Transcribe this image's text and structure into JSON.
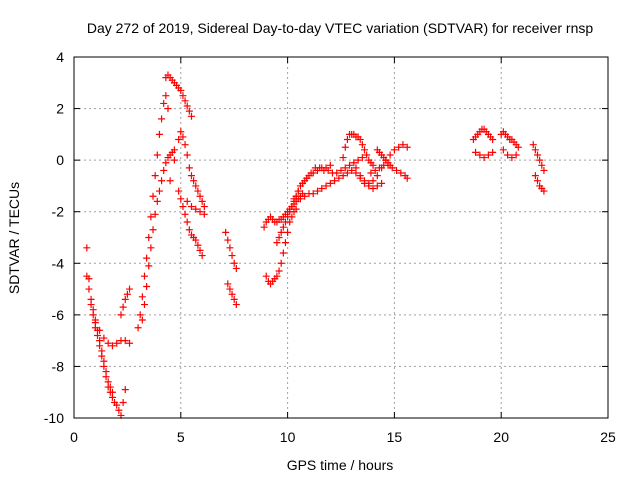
{
  "chart_data": {
    "type": "scatter",
    "title": "Day 272 of 2019, Sidereal Day-to-day VTEC variation (SDTVAR) for receiver rnsp",
    "xlabel": "GPS time / hours",
    "ylabel": "SDTVAR / TECUs",
    "xlim": [
      0,
      25
    ],
    "ylim": [
      -10,
      4
    ],
    "xticks": [
      "0",
      "5",
      "10",
      "15",
      "20",
      "25"
    ],
    "yticks": [
      "-10",
      "-8",
      "-6",
      "-4",
      "-2",
      "0",
      "2",
      "4"
    ],
    "grid": true,
    "marker": "plus",
    "color": "#ff0000",
    "series": [
      {
        "x": [
          0.6,
          0.7,
          0.8,
          0.9,
          1.0,
          1.1,
          1.2,
          1.3,
          1.4,
          1.5,
          1.6,
          1.7,
          1.8,
          1.9,
          2.0,
          2.1,
          2.2,
          2.3,
          2.4
        ],
        "y": [
          -3.4,
          -4.6,
          -5.6,
          -6.0,
          -6.5,
          -6.8,
          -7.2,
          -7.6,
          -8.0,
          -8.4,
          -8.8,
          -9.0,
          -9.2,
          -9.4,
          -9.5,
          -9.7,
          -9.9,
          -9.4,
          -8.9
        ]
      },
      {
        "x": [
          0.6,
          0.7,
          0.8,
          0.9,
          1.0,
          1.1,
          1.2,
          1.3,
          1.4,
          1.5,
          1.6,
          1.7,
          1.8
        ],
        "y": [
          -4.5,
          -5.0,
          -5.4,
          -5.8,
          -6.2,
          -6.6,
          -7.0,
          -7.4,
          -7.8,
          -8.2,
          -8.6,
          -8.8,
          -9.0
        ]
      },
      {
        "x": [
          1.0,
          1.2,
          1.4,
          1.6,
          1.8,
          2.0,
          2.2,
          2.4,
          2.6
        ],
        "y": [
          -6.3,
          -6.6,
          -6.9,
          -7.1,
          -7.2,
          -7.1,
          -7.0,
          -7.0,
          -7.1
        ]
      },
      {
        "x": [
          2.2,
          2.3,
          2.4,
          2.5,
          2.6
        ],
        "y": [
          -6.0,
          -5.7,
          -5.4,
          -5.2,
          -5.0
        ]
      },
      {
        "x": [
          3.0,
          3.1,
          3.2,
          3.3,
          3.4,
          3.5,
          3.6,
          3.7,
          3.8,
          3.9,
          4.0,
          4.1,
          4.2,
          4.3,
          4.4
        ],
        "y": [
          -6.5,
          -6.0,
          -5.3,
          -4.5,
          -3.8,
          -3.0,
          -2.2,
          -1.4,
          -0.6,
          0.2,
          1.0,
          1.6,
          2.2,
          2.5,
          2.0
        ]
      },
      {
        "x": [
          3.2,
          3.3,
          3.4,
          3.5,
          3.6,
          3.7,
          3.8,
          3.9,
          4.0,
          4.1,
          4.2,
          4.3,
          4.4,
          4.5,
          4.6,
          4.7
        ],
        "y": [
          -6.2,
          -5.6,
          -4.9,
          -4.1,
          -3.4,
          -2.7,
          -2.1,
          -1.6,
          -1.2,
          -0.8,
          -0.4,
          -0.1,
          0.1,
          0.2,
          0.3,
          0.4
        ]
      },
      {
        "x": [
          4.3,
          4.4,
          4.5,
          4.6,
          4.7,
          4.8,
          4.9,
          5.0,
          5.1,
          5.2,
          5.3,
          5.4,
          5.5
        ],
        "y": [
          3.2,
          3.3,
          3.2,
          3.1,
          3.0,
          2.9,
          2.8,
          2.7,
          2.5,
          2.3,
          2.1,
          1.9,
          1.7
        ]
      },
      {
        "x": [
          4.5,
          4.7,
          4.9,
          5.0,
          5.1,
          5.2,
          5.3,
          5.4,
          5.5,
          5.6,
          5.7,
          5.8,
          5.9,
          6.0,
          6.1
        ],
        "y": [
          -0.8,
          0.0,
          0.8,
          1.1,
          0.9,
          0.6,
          0.2,
          -0.3,
          -0.6,
          -0.8,
          -1.0,
          -1.2,
          -1.4,
          -1.6,
          -1.8
        ]
      },
      {
        "x": [
          4.9,
          5.0,
          5.1,
          5.2,
          5.3,
          5.4,
          5.5,
          5.6,
          5.7,
          5.8,
          5.9,
          6.0
        ],
        "y": [
          -1.2,
          -1.5,
          -1.8,
          -2.1,
          -2.4,
          -2.7,
          -2.9,
          -3.0,
          -3.1,
          -3.3,
          -3.5,
          -3.7
        ]
      },
      {
        "x": [
          5.3,
          5.5,
          5.7,
          5.9,
          6.1
        ],
        "y": [
          -1.6,
          -1.8,
          -1.9,
          -2.0,
          -2.1
        ]
      },
      {
        "x": [
          7.1,
          7.2,
          7.3,
          7.4,
          7.5,
          7.6
        ],
        "y": [
          -2.8,
          -3.1,
          -3.4,
          -3.7,
          -4.0,
          -4.2
        ]
      },
      {
        "x": [
          7.2,
          7.3,
          7.4,
          7.5,
          7.6
        ],
        "y": [
          -4.8,
          -5.0,
          -5.2,
          -5.4,
          -5.6
        ]
      },
      {
        "x": [
          8.9,
          9.0,
          9.1,
          9.2,
          9.3,
          9.4,
          9.5,
          9.6,
          9.7,
          9.8,
          9.9,
          10.0,
          10.1,
          10.2,
          10.3,
          10.4,
          10.5,
          10.6,
          10.7
        ],
        "y": [
          -2.6,
          -2.4,
          -2.3,
          -2.2,
          -2.3,
          -2.4,
          -2.4,
          -2.3,
          -2.3,
          -2.2,
          -2.1,
          -2.0,
          -1.9,
          -1.8,
          -1.7,
          -1.6,
          -1.5,
          -1.4,
          -1.3
        ]
      },
      {
        "x": [
          9.0,
          9.1,
          9.2,
          9.3,
          9.4,
          9.5,
          9.6,
          9.7,
          9.8,
          9.9,
          10.0,
          10.1,
          10.2,
          10.3,
          10.4
        ],
        "y": [
          -4.5,
          -4.7,
          -4.8,
          -4.7,
          -4.6,
          -4.5,
          -4.3,
          -4.0,
          -3.6,
          -3.2,
          -2.8,
          -2.4,
          -2.2,
          -2.0,
          -1.9
        ]
      },
      {
        "x": [
          9.5,
          9.6,
          9.7,
          9.8,
          9.9,
          10.0,
          10.1,
          10.2,
          10.3,
          10.4,
          10.5,
          10.6,
          10.7,
          10.8,
          10.9,
          11.0,
          11.2,
          11.4,
          11.6,
          11.8,
          12.0
        ],
        "y": [
          -3.2,
          -3.0,
          -2.8,
          -2.6,
          -2.4,
          -2.2,
          -2.0,
          -1.8,
          -1.6,
          -1.4,
          -1.2,
          -1.0,
          -0.9,
          -0.8,
          -0.7,
          -0.6,
          -0.5,
          -0.4,
          -0.3,
          -0.3,
          -0.2
        ]
      },
      {
        "x": [
          10.3,
          10.5,
          10.7,
          10.9,
          11.1,
          11.3,
          11.5,
          11.7,
          11.9,
          12.1,
          12.3,
          12.5,
          12.7,
          12.9,
          13.1,
          13.3,
          13.5
        ],
        "y": [
          -1.5,
          -1.2,
          -0.9,
          -0.7,
          -0.5,
          -0.3,
          -0.3,
          -0.4,
          -0.4,
          -0.5,
          -0.5,
          -0.4,
          -0.3,
          -0.2,
          -0.1,
          0.0,
          0.1
        ]
      },
      {
        "x": [
          10.4,
          10.6,
          10.8,
          11.0,
          11.2,
          11.4,
          11.6,
          11.8,
          12.0,
          12.2,
          12.4,
          12.6,
          12.8,
          13.0,
          13.2,
          13.4,
          13.6,
          13.8,
          14.0,
          14.2,
          14.4
        ],
        "y": [
          -1.4,
          -1.5,
          -1.4,
          -1.3,
          -1.3,
          -1.2,
          -1.1,
          -1.0,
          -0.9,
          -0.8,
          -0.7,
          -0.6,
          -0.5,
          -0.4,
          -0.5,
          -0.7,
          -0.9,
          -1.0,
          -1.1,
          -1.0,
          -0.9
        ]
      },
      {
        "x": [
          12.6,
          12.7,
          12.8,
          12.9,
          13.0,
          13.1,
          13.2,
          13.3,
          13.4,
          13.5,
          13.6,
          13.7,
          13.8,
          13.9,
          14.0
        ],
        "y": [
          0.1,
          0.5,
          0.8,
          1.0,
          1.0,
          1.0,
          0.9,
          0.9,
          0.8,
          0.6,
          0.4,
          0.2,
          0.0,
          -0.1,
          -0.2
        ]
      },
      {
        "x": [
          13.2,
          13.4,
          13.6,
          13.8,
          14.0,
          14.2,
          14.4,
          14.6,
          14.8,
          15.0,
          15.2,
          15.4,
          15.6
        ],
        "y": [
          -0.3,
          -0.6,
          -0.8,
          -0.9,
          -0.8,
          -0.6,
          -0.3,
          0.0,
          0.2,
          0.4,
          0.5,
          0.6,
          0.5
        ]
      },
      {
        "x": [
          13.9,
          14.1,
          14.3,
          14.5,
          14.7,
          14.9,
          15.1,
          15.3,
          15.5,
          15.6
        ],
        "y": [
          -0.5,
          -0.4,
          -0.3,
          -0.2,
          -0.2,
          -0.3,
          -0.4,
          -0.5,
          -0.6,
          -0.7
        ]
      },
      {
        "x": [
          14.2,
          14.3,
          14.4,
          14.5,
          14.6,
          14.7,
          14.8
        ],
        "y": [
          0.4,
          0.3,
          0.2,
          0.1,
          0.0,
          -0.1,
          -0.2
        ]
      },
      {
        "x": [
          18.7,
          18.8,
          18.9,
          19.0,
          19.1,
          19.2,
          19.3,
          19.4,
          19.5,
          19.6
        ],
        "y": [
          0.8,
          0.9,
          1.0,
          1.1,
          1.2,
          1.2,
          1.1,
          1.0,
          0.9,
          0.8
        ]
      },
      {
        "x": [
          18.8,
          19.0,
          19.2,
          19.4,
          19.6
        ],
        "y": [
          0.3,
          0.2,
          0.1,
          0.2,
          0.3
        ]
      },
      {
        "x": [
          20.0,
          20.1,
          20.2,
          20.3,
          20.4,
          20.5,
          20.6,
          20.7,
          20.8
        ],
        "y": [
          1.0,
          1.1,
          1.0,
          0.9,
          0.8,
          0.8,
          0.7,
          0.6,
          0.5
        ]
      },
      {
        "x": [
          20.1,
          20.3,
          20.5,
          20.7
        ],
        "y": [
          0.4,
          0.2,
          0.1,
          0.2
        ]
      },
      {
        "x": [
          21.5,
          21.6,
          21.7,
          21.8,
          21.9,
          22.0
        ],
        "y": [
          0.6,
          0.4,
          0.2,
          0.0,
          -0.2,
          -0.4
        ]
      },
      {
        "x": [
          21.6,
          21.7,
          21.8,
          21.9,
          22.0
        ],
        "y": [
          -0.6,
          -0.8,
          -1.0,
          -1.1,
          -1.2
        ]
      }
    ]
  }
}
